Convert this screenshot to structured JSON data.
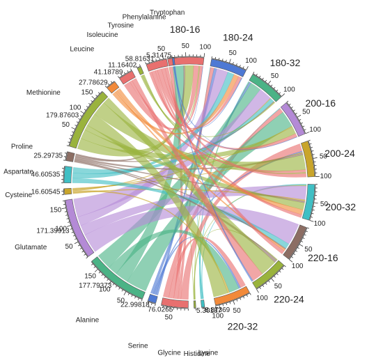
{
  "chart_data": {
    "type": "chord",
    "groups": [
      {
        "name": "180-16",
        "value": 100,
        "color": "#E8706F",
        "side": "right"
      },
      {
        "name": "180-24",
        "value": 100,
        "color": "#4E79D4",
        "side": "right"
      },
      {
        "name": "180-32",
        "value": 100,
        "color": "#4BB386",
        "side": "right"
      },
      {
        "name": "200-16",
        "value": 100,
        "color": "#B48AD6",
        "side": "right"
      },
      {
        "name": "200-24",
        "value": 100,
        "color": "#C9A52B",
        "side": "right"
      },
      {
        "name": "200-32",
        "value": 100,
        "color": "#40BFC4",
        "side": "right"
      },
      {
        "name": "220-16",
        "value": 100,
        "color": "#8C6E64",
        "side": "right"
      },
      {
        "name": "220-24",
        "value": 100,
        "color": "#9AB33D",
        "side": "right"
      },
      {
        "name": "220-32",
        "value": 100,
        "color": "#F28A3A",
        "side": "right"
      },
      {
        "name": "Lysine",
        "total_label": "8.87369",
        "value": 8.87369,
        "color": "#40BFC4",
        "side": "left"
      },
      {
        "name": "Histidine",
        "total_label": "5.30187",
        "value": 5.30187,
        "color": "#9AB33D",
        "side": "left"
      },
      {
        "name": "Glycine",
        "total_label": "76.0265",
        "value": 76.0265,
        "color": "#E8706F",
        "side": "left"
      },
      {
        "name": "Serine",
        "total_label": "22.99818",
        "value": 22.99818,
        "color": "#4E79D4",
        "side": "left"
      },
      {
        "name": "Alanine",
        "total_label": "177.79373",
        "value": 177.79373,
        "color": "#4BB386",
        "side": "left"
      },
      {
        "name": "Glutamate",
        "total_label": "171.39913",
        "value": 171.39913,
        "color": "#B48AD6",
        "side": "left"
      },
      {
        "name": "Cysteine",
        "total_label": "16.60545",
        "value": 16.60545,
        "color": "#C9A52B",
        "side": "left"
      },
      {
        "name": "Aspartate",
        "total_label": "46.60535",
        "value": 46.60535,
        "color": "#40BFC4",
        "side": "left"
      },
      {
        "name": "Proline",
        "total_label": "25.29735",
        "value": 25.29735,
        "color": "#8C6E64",
        "side": "left"
      },
      {
        "name": "Methionine",
        "total_label": "179.87603",
        "value": 179.87603,
        "color": "#9AB33D",
        "side": "left"
      },
      {
        "name": "Leucine",
        "total_label": "27.78629",
        "value": 27.78629,
        "color": "#F28A3A",
        "side": "left"
      },
      {
        "name": "Isoleucine",
        "total_label": "41.18789",
        "value": 41.18789,
        "color": "#E8706F",
        "side": "left"
      },
      {
        "name": "Tyrosine",
        "total_label": "11.16402",
        "value": 11.16402,
        "color": "#9AB33D",
        "side": "left"
      },
      {
        "name": "Phenylalanine",
        "total_label": "58.81631",
        "value": 58.81631,
        "color": "#E8706F",
        "side": "left"
      },
      {
        "name": "Tryptophan",
        "total_label": "5.31475",
        "value": 5.31475,
        "color": "#4E79D4",
        "side": "left"
      }
    ],
    "tick_step": 50,
    "tick_labels": [
      "50",
      "100",
      "150"
    ]
  }
}
